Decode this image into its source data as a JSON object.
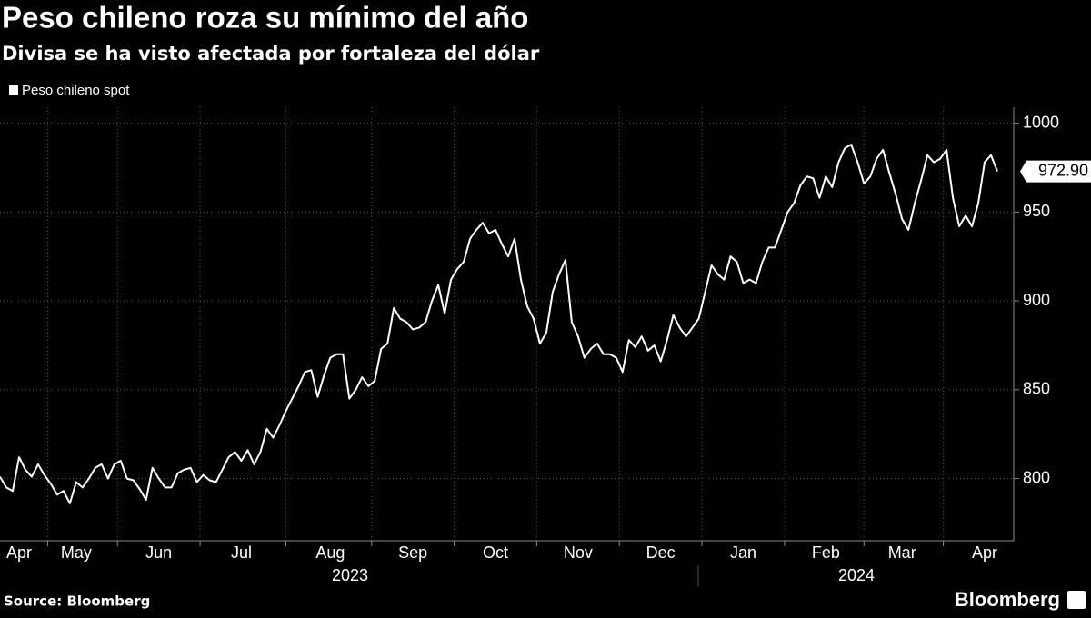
{
  "chart_data": {
    "type": "line",
    "title": "Peso chileno roza su mínimo del año",
    "subtitle": "Divisa se ha visto afectada por fortaleza del dólar",
    "source": "Source: Bloomberg",
    "brand": "Bloomberg",
    "categories": [
      null,
      null,
      null,
      "Apr",
      null,
      null,
      null,
      null,
      null,
      null,
      null,
      null,
      "May",
      null,
      null,
      null,
      null,
      null,
      null,
      null,
      null,
      null,
      null,
      null,
      null,
      "Jun",
      null,
      null,
      null,
      null,
      null,
      null,
      null,
      null,
      null,
      null,
      null,
      null,
      "Jul",
      null,
      null,
      null,
      null,
      null,
      null,
      null,
      null,
      null,
      null,
      null,
      null,
      null,
      "Aug",
      null,
      null,
      null,
      null,
      null,
      null,
      null,
      null,
      null,
      null,
      null,
      null,
      "Sep",
      null,
      null,
      null,
      null,
      null,
      null,
      null,
      null,
      null,
      null,
      null,
      null,
      "Oct",
      null,
      null,
      null,
      null,
      null,
      null,
      null,
      null,
      null,
      null,
      null,
      null,
      "Nov",
      null,
      null,
      null,
      null,
      null,
      null,
      null,
      null,
      null,
      null,
      null,
      null,
      "Dec",
      null,
      null,
      null,
      null,
      null,
      null,
      null,
      null,
      null,
      null,
      null,
      null,
      "Jan",
      null,
      null,
      null,
      null,
      null,
      null,
      null,
      null,
      null,
      null,
      null,
      null,
      "Feb",
      null,
      null,
      null,
      null,
      null,
      null,
      null,
      null,
      null,
      null,
      null,
      "Mar",
      null,
      null,
      null,
      null,
      null,
      null,
      null,
      null,
      null,
      null,
      null,
      null,
      "Apr",
      null,
      null
    ],
    "x_groups": [
      "2023",
      "2024"
    ],
    "series": [
      {
        "name": "Peso chileno spot",
        "color": "#ffffff",
        "values": [
          801,
          795,
          793,
          812,
          805,
          801,
          808,
          802,
          797,
          791,
          793,
          786,
          798,
          795,
          800,
          806,
          808,
          800,
          808,
          810,
          800,
          799,
          794,
          788,
          806,
          800,
          795,
          795,
          803,
          805,
          806,
          798,
          802,
          799,
          798,
          805,
          812,
          815,
          810,
          816,
          808,
          815,
          828,
          823,
          830,
          838,
          845,
          852,
          860,
          861,
          846,
          858,
          868,
          870,
          870,
          845,
          850,
          857,
          852,
          855,
          873,
          876,
          896,
          890,
          888,
          884,
          885,
          888,
          900,
          909,
          893,
          912,
          918,
          922,
          935,
          940,
          944,
          938,
          940,
          932,
          925,
          935,
          912,
          897,
          890,
          876,
          882,
          905,
          915,
          923,
          888,
          880,
          868,
          873,
          876,
          870,
          870,
          868,
          860,
          878,
          874,
          880,
          872,
          875,
          866,
          878,
          892,
          885,
          880,
          885,
          890,
          905,
          920,
          915,
          912,
          925,
          922,
          910,
          912,
          910,
          922,
          930,
          930,
          940,
          950,
          955,
          965,
          970,
          969,
          958,
          970,
          964,
          978,
          986,
          988,
          978,
          966,
          970,
          980,
          985,
          972,
          960,
          946,
          940,
          955,
          968,
          982,
          978,
          980,
          985,
          958,
          942,
          948,
          942,
          955,
          978,
          982,
          972.9
        ],
        "value_labels": [
          null,
          null,
          null,
          null,
          null,
          null,
          null,
          null,
          null,
          null,
          null,
          null,
          null,
          null,
          null,
          null,
          null,
          null,
          null,
          null,
          null,
          null,
          null,
          null,
          null,
          null,
          null,
          null,
          null,
          null,
          null,
          null,
          null,
          null,
          null,
          null,
          null,
          null,
          null,
          null,
          null,
          null,
          null,
          null,
          null,
          null,
          null,
          null,
          null,
          null,
          null,
          null,
          null,
          null,
          null,
          null,
          null,
          null,
          null,
          null,
          null,
          null,
          null,
          null,
          null,
          null,
          null,
          null,
          null,
          null,
          null,
          null,
          null,
          null,
          null,
          null,
          null,
          null,
          null,
          null,
          null,
          null,
          null,
          null,
          null,
          null,
          null,
          null,
          null,
          null,
          null,
          null,
          null,
          null,
          null,
          null,
          null,
          null,
          null,
          null,
          null,
          null,
          null,
          null,
          null,
          null,
          null,
          null,
          null,
          null,
          null,
          null,
          null,
          null,
          null,
          null,
          null,
          null,
          null,
          null,
          null,
          null,
          null,
          null,
          null,
          null,
          null,
          null,
          null,
          null,
          null,
          null,
          null,
          null,
          null,
          null,
          null,
          null,
          null,
          null,
          null,
          null,
          null,
          null,
          null,
          null,
          null,
          null,
          null,
          null,
          null,
          null,
          null,
          null,
          null,
          null,
          null,
          "972.90"
        ]
      }
    ],
    "ylim": [
      765,
      1009
    ],
    "yticks": [
      800,
      850,
      900,
      950,
      1000
    ],
    "grid": true,
    "legend": "top-left"
  }
}
